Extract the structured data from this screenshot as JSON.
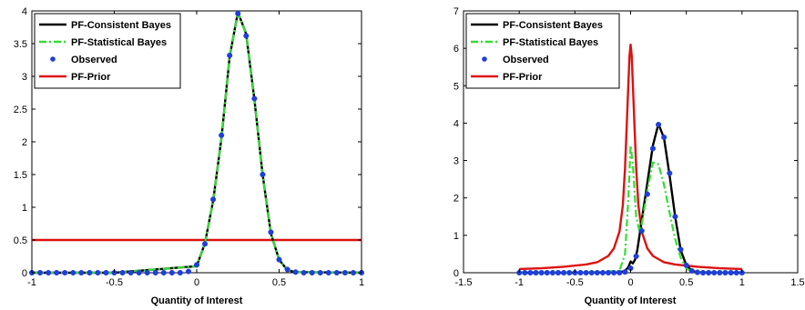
{
  "chart_data": [
    {
      "type": "line",
      "title": "",
      "xlabel": "Quantity of Interest",
      "ylabel": "",
      "xlim": [
        -1,
        1
      ],
      "ylim": [
        0,
        4
      ],
      "xticks": [
        "-1",
        "-0.5",
        "0",
        "0.5",
        "1"
      ],
      "xtick_values": [
        -1,
        -0.5,
        0,
        0.5,
        1
      ],
      "yticks": [
        "0",
        "0.5",
        "1",
        "1.5",
        "2",
        "2.5",
        "3",
        "3.5",
        "4"
      ],
      "ytick_values": [
        0,
        0.5,
        1,
        1.5,
        2,
        2.5,
        3,
        3.5,
        4
      ],
      "grid": false,
      "legend_position": "top-left",
      "series": [
        {
          "name": "PF-Consistent Bayes",
          "color": "#000000",
          "style": "solid",
          "x": [
            -1,
            -0.5,
            0,
            0.05,
            0.1,
            0.15,
            0.2,
            0.25,
            0.3,
            0.35,
            0.4,
            0.45,
            0.5,
            0.55,
            0.6,
            1
          ],
          "y": [
            0,
            0,
            0.1,
            0.45,
            1.1,
            2.05,
            3.3,
            3.98,
            3.65,
            2.65,
            1.5,
            0.6,
            0.2,
            0.04,
            0.01,
            0
          ]
        },
        {
          "name": "PF-Statistical Bayes",
          "color": "#33dd33",
          "style": "dashdot",
          "x": [
            -1,
            -0.5,
            0,
            0.05,
            0.1,
            0.15,
            0.2,
            0.25,
            0.3,
            0.35,
            0.4,
            0.45,
            0.5,
            0.55,
            0.6,
            1
          ],
          "y": [
            0,
            0,
            0.1,
            0.45,
            1.1,
            2.05,
            3.3,
            3.98,
            3.65,
            2.65,
            1.5,
            0.6,
            0.2,
            0.04,
            0.01,
            0
          ]
        },
        {
          "name": "Observed",
          "color": "#1f3fd9",
          "style": "markers",
          "x": [
            -1,
            -0.95,
            -0.9,
            -0.85,
            -0.8,
            -0.75,
            -0.7,
            -0.65,
            -0.6,
            -0.55,
            -0.5,
            -0.45,
            -0.4,
            -0.35,
            -0.3,
            -0.25,
            -0.2,
            -0.15,
            -0.1,
            -0.05,
            0,
            0.05,
            0.1,
            0.15,
            0.2,
            0.25,
            0.3,
            0.35,
            0.4,
            0.45,
            0.5,
            0.55,
            0.6,
            0.65,
            0.7,
            0.75,
            0.8,
            0.85,
            0.9,
            0.95,
            1
          ],
          "y": [
            0,
            0,
            0,
            0,
            0,
            0,
            0,
            0,
            0,
            0,
            0,
            0,
            0,
            0,
            0,
            0,
            0,
            0,
            0,
            0.02,
            0.12,
            0.44,
            1.12,
            2.1,
            3.32,
            3.96,
            3.62,
            2.66,
            1.5,
            0.62,
            0.2,
            0.05,
            0.01,
            0,
            0,
            0,
            0,
            0,
            0,
            0,
            0
          ]
        },
        {
          "name": "PF-Prior",
          "color": "#dd1111",
          "style": "solid",
          "x": [
            -1,
            1
          ],
          "y": [
            0.5,
            0.5
          ]
        }
      ]
    },
    {
      "type": "line",
      "title": "",
      "xlabel": "Quantity of Interest",
      "ylabel": "",
      "xlim": [
        -1.5,
        1.5
      ],
      "ylim": [
        0,
        7
      ],
      "xticks": [
        "-1.5",
        "-1",
        "-0.5",
        "0",
        "0.5",
        "1",
        "1.5"
      ],
      "xtick_values": [
        -1.5,
        -1,
        -0.5,
        0,
        0.5,
        1,
        1.5
      ],
      "yticks": [
        "0",
        "1",
        "2",
        "3",
        "4",
        "5",
        "6",
        "7"
      ],
      "ytick_values": [
        0,
        1,
        2,
        3,
        4,
        5,
        6,
        7
      ],
      "grid": false,
      "legend_position": "top-left",
      "series": [
        {
          "name": "PF-Consistent Bayes",
          "color": "#000000",
          "style": "solid",
          "x": [
            -1,
            -0.5,
            -0.1,
            -0.05,
            -0.02,
            0,
            0.02,
            0.04,
            0.06,
            0.08,
            0.1,
            0.15,
            0.2,
            0.25,
            0.3,
            0.35,
            0.4,
            0.45,
            0.5,
            0.55,
            0.6,
            1
          ],
          "y": [
            0,
            0,
            0.01,
            0.05,
            0.15,
            0.3,
            0.25,
            0.35,
            0.6,
            1.0,
            1.4,
            2.4,
            3.4,
            3.98,
            3.6,
            2.6,
            1.5,
            0.6,
            0.2,
            0.05,
            0.01,
            0
          ]
        },
        {
          "name": "PF-Statistical Bayes",
          "color": "#33dd33",
          "style": "dashdot",
          "x": [
            -1,
            -0.5,
            -0.1,
            -0.05,
            -0.02,
            0,
            0.02,
            0.05,
            0.08,
            0.1,
            0.15,
            0.2,
            0.25,
            0.3,
            0.35,
            0.4,
            0.45,
            0.5,
            0.55,
            1
          ],
          "y": [
            0,
            0,
            0.05,
            0.5,
            2.0,
            3.4,
            2.9,
            1.5,
            1.1,
            1.3,
            2.2,
            2.95,
            2.9,
            2.35,
            1.6,
            0.9,
            0.4,
            0.12,
            0.03,
            0
          ]
        },
        {
          "name": "Observed",
          "color": "#1f3fd9",
          "style": "markers",
          "x": [
            -1,
            -0.95,
            -0.9,
            -0.85,
            -0.8,
            -0.75,
            -0.7,
            -0.65,
            -0.6,
            -0.55,
            -0.5,
            -0.45,
            -0.4,
            -0.35,
            -0.3,
            -0.25,
            -0.2,
            -0.15,
            -0.1,
            -0.05,
            0,
            0.05,
            0.1,
            0.15,
            0.2,
            0.25,
            0.3,
            0.35,
            0.4,
            0.45,
            0.5,
            0.55,
            0.6,
            0.65,
            0.7,
            0.75,
            0.8,
            0.85,
            0.9,
            0.95,
            1
          ],
          "y": [
            0,
            0,
            0,
            0,
            0,
            0,
            0,
            0,
            0,
            0,
            0,
            0,
            0,
            0,
            0,
            0,
            0,
            0,
            0,
            0.02,
            0.12,
            0.44,
            1.12,
            2.1,
            3.32,
            3.96,
            3.62,
            2.66,
            1.5,
            0.62,
            0.2,
            0.05,
            0.01,
            0,
            0,
            0,
            0,
            0,
            0,
            0,
            0
          ]
        },
        {
          "name": "PF-Prior",
          "color": "#dd1111",
          "style": "solid",
          "x": [
            -1,
            -0.8,
            -0.6,
            -0.4,
            -0.3,
            -0.2,
            -0.15,
            -0.1,
            -0.07,
            -0.05,
            -0.03,
            -0.01,
            0,
            0.01,
            0.03,
            0.05,
            0.07,
            0.1,
            0.15,
            0.2,
            0.3,
            0.4,
            0.6,
            0.8,
            1
          ],
          "y": [
            0.1,
            0.12,
            0.16,
            0.22,
            0.28,
            0.45,
            0.65,
            1.1,
            1.8,
            2.8,
            4.3,
            5.8,
            6.1,
            5.8,
            4.3,
            2.8,
            1.8,
            1.1,
            0.65,
            0.45,
            0.28,
            0.22,
            0.16,
            0.12,
            0.1
          ]
        }
      ]
    }
  ]
}
